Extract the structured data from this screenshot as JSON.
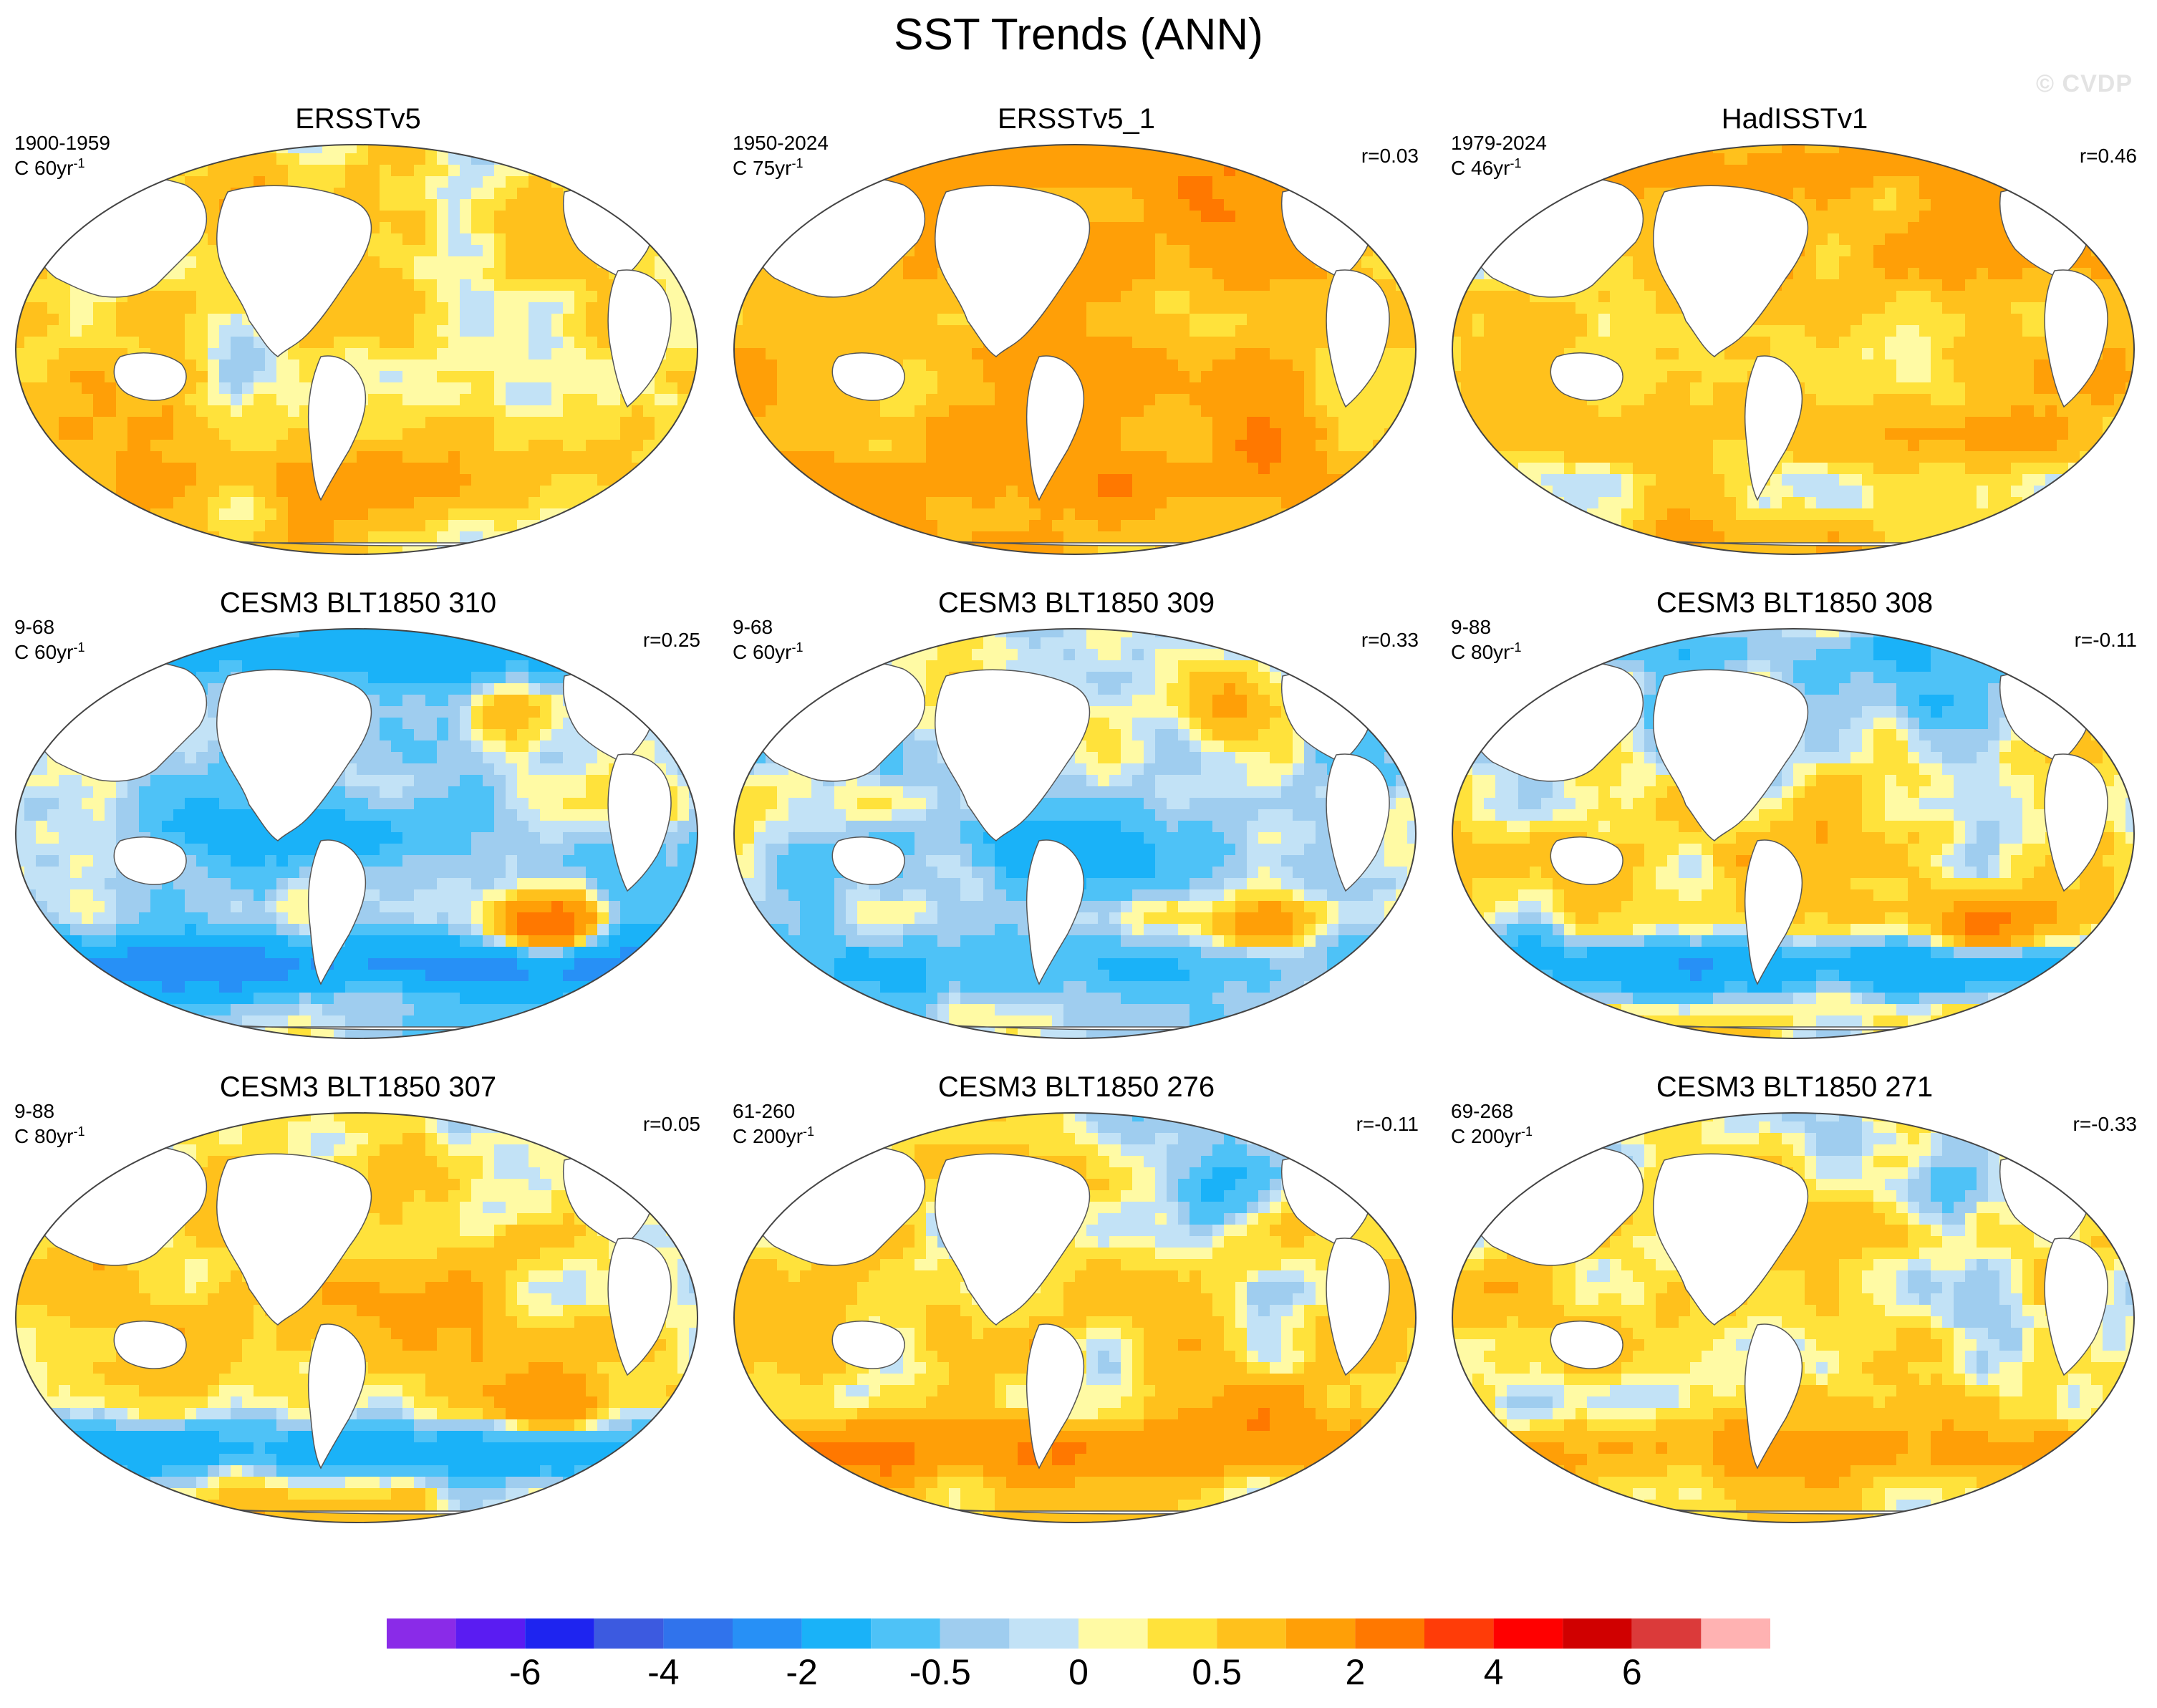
{
  "figure": {
    "title": "SST Trends (ANN)",
    "watermark": "© CVDP"
  },
  "panels": [
    {
      "title": "ERSSTv5",
      "period": "1900-1959",
      "scale": "C 60yr",
      "scale_sup": "-1",
      "corr": "",
      "pattern": {
        "base": 0.45,
        "arctic": -0.2,
        "tropicalPacific": -0.35,
        "southernOcean": 0.6,
        "northPacific": 0.35,
        "northAtlantic": 0.4,
        "southAtlanticBlob": 0.1
      }
    },
    {
      "title": "ERSSTv5_1",
      "period": "1950-2024",
      "scale": "C 75yr",
      "scale_sup": "-1",
      "corr": "r=0.03",
      "pattern": {
        "base": 0.9,
        "arctic": 0.6,
        "tropicalPacific": 0.5,
        "southernOcean": 0.7,
        "northPacific": 0.7,
        "northAtlantic": 0.8,
        "southAtlanticBlob": 1.0
      }
    },
    {
      "title": "HadISSTv1",
      "period": "1979-2024",
      "scale": "C 46yr",
      "scale_sup": "-1",
      "corr": "r=0.46",
      "pattern": {
        "base": 0.6,
        "arctic": 0.8,
        "tropicalPacific": -0.3,
        "southernOcean": -0.3,
        "northPacific": 0.8,
        "northAtlantic": 0.9,
        "southAtlanticBlob": 0.3
      }
    },
    {
      "title": "CESM3 BLT1850 310",
      "period": "9-68",
      "scale": "C 60yr",
      "scale_sup": "-1",
      "corr": "r=0.25",
      "pattern": {
        "base": -0.3,
        "arctic": -1.2,
        "tropicalPacific": -1.5,
        "southernOcean": -2.2,
        "northPacific": 0.3,
        "northAtlantic": 1.2,
        "southAtlanticBlob": 3.5
      }
    },
    {
      "title": "CESM3 BLT1850 309",
      "period": "9-68",
      "scale": "C 60yr",
      "scale_sup": "-1",
      "corr": "r=0.33",
      "pattern": {
        "base": -0.3,
        "arctic": 0.2,
        "tropicalPacific": -1.0,
        "southernOcean": -0.9,
        "northPacific": 0.9,
        "northAtlantic": 1.3,
        "southAtlanticBlob": 2.5
      }
    },
    {
      "title": "CESM3 BLT1850 308",
      "period": "9-88",
      "scale": "C 80yr",
      "scale_sup": "-1",
      "corr": "r=-0.11",
      "pattern": {
        "base": 0.3,
        "arctic": -1.0,
        "tropicalPacific": 0.3,
        "southernOcean": -2.0,
        "northPacific": -1.2,
        "northAtlantic": -1.0,
        "southAtlanticBlob": 2.2
      }
    },
    {
      "title": "CESM3 BLT1850 307",
      "period": "9-88",
      "scale": "C 80yr",
      "scale_sup": "-1",
      "corr": "r=0.05",
      "pattern": {
        "base": 0.4,
        "arctic": -0.3,
        "tropicalPacific": 0.3,
        "southernOcean": -1.8,
        "northPacific": 1.0,
        "northAtlantic": -0.5,
        "southAtlanticBlob": 1.8
      }
    },
    {
      "title": "CESM3 BLT1850 276",
      "period": "61-260",
      "scale": "C 200yr",
      "scale_sup": "-1",
      "corr": "r=-0.11",
      "pattern": {
        "base": 0.35,
        "arctic": -0.3,
        "tropicalPacific": 0.2,
        "southernOcean": 1.6,
        "northPacific": -0.3,
        "northAtlantic": -1.2,
        "southAtlanticBlob": 1.0
      }
    },
    {
      "title": "CESM3 BLT1850 271",
      "period": "69-268",
      "scale": "C 200yr",
      "scale_sup": "-1",
      "corr": "r=-0.33",
      "pattern": {
        "base": 0.3,
        "arctic": -0.3,
        "tropicalPacific": 0.1,
        "southernOcean": 0.9,
        "northPacific": 0.5,
        "northAtlantic": -1.2,
        "southAtlanticBlob": 0.6
      }
    }
  ],
  "colorbar": {
    "colors": [
      "#8a2be8",
      "#5a1cf2",
      "#1e24f0",
      "#3c5ae0",
      "#3073ec",
      "#2790f6",
      "#1ab2f8",
      "#4ec2f7",
      "#9fcdef",
      "#c2e2f6",
      "#fffaa4",
      "#ffe23b",
      "#ffc11c",
      "#ff9f07",
      "#ff7800",
      "#ff3c08",
      "#ff0000",
      "#d00000",
      "#db3a3a",
      "#ffb2b2"
    ],
    "tick_labels": [
      "-6",
      "-4",
      "-2",
      "-0.5",
      "0",
      "0.5",
      "2",
      "4",
      "6"
    ],
    "tick_positions_in_bins": [
      2,
      4,
      6,
      8,
      10,
      12,
      14,
      16,
      18
    ],
    "levels": [
      -7,
      -6,
      -5,
      -4,
      -3,
      -2,
      -1,
      -0.5,
      -0.2,
      0,
      0.2,
      0.5,
      1,
      2,
      3,
      4,
      5,
      6,
      7
    ]
  }
}
